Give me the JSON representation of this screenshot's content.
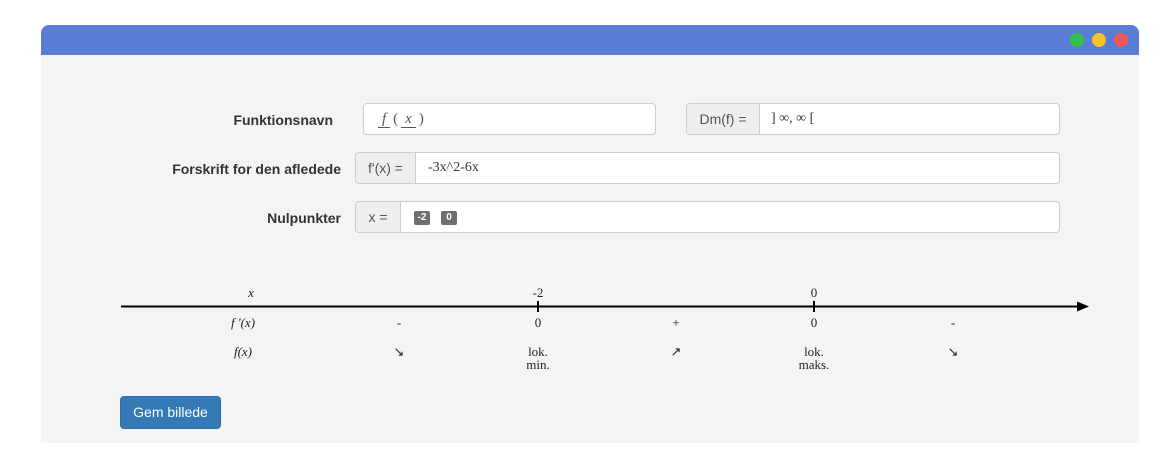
{
  "window": {
    "controls": [
      {
        "name": "maximize-dot",
        "color": "#34c24a"
      },
      {
        "name": "minimize-dot",
        "color": "#f7c12d"
      },
      {
        "name": "close-dot",
        "color": "#ee5a52"
      }
    ],
    "titlebar_color": "#597cd4"
  },
  "form": {
    "function_name": {
      "label": "Funktionsnavn",
      "func": "f",
      "var": "x"
    },
    "domain": {
      "addon": "Dm(f) =",
      "value": "] ∞, ∞ ["
    },
    "derivative": {
      "label": "Forskrift for den afledede",
      "addon": "f'(x) =",
      "value": "-3x^2-6x"
    },
    "zeros": {
      "label": "Nulpunkter",
      "addon": "x =",
      "values": [
        "-2",
        "0"
      ]
    }
  },
  "sign_chart": {
    "row_labels": {
      "x": "x",
      "fprime": "f '(x)",
      "f": "f(x)"
    },
    "points": [
      {
        "x": "-2",
        "fprime": "0",
        "f_line1": "lok.",
        "f_line2": "min."
      },
      {
        "x": "0",
        "fprime": "0",
        "f_line1": "lok.",
        "f_line2": "maks."
      }
    ],
    "intervals": [
      {
        "sign": "-",
        "arrow": "↘"
      },
      {
        "sign": "+",
        "arrow": "↗"
      },
      {
        "sign": "-",
        "arrow": "↘"
      }
    ]
  },
  "actions": {
    "save_label": "Gem billede"
  }
}
